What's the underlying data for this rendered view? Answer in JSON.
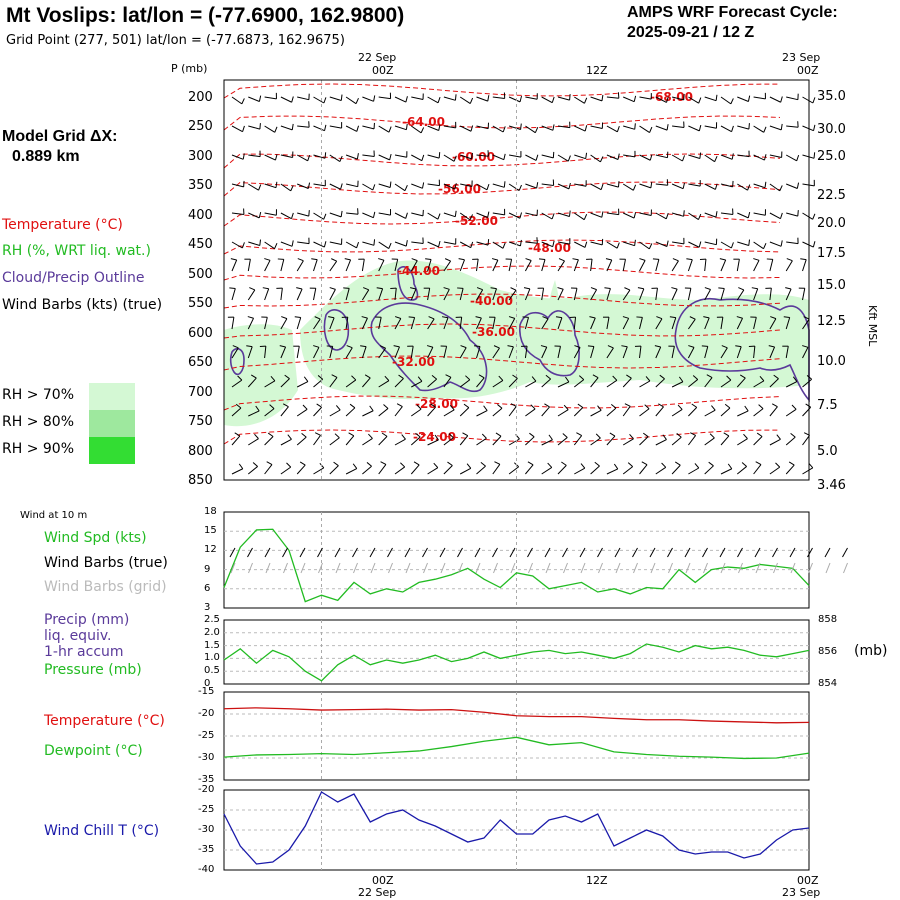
{
  "header": {
    "title": "Mt Voslips:  lat/lon = (-77.6900, 162.9800)",
    "subtitle": "Grid Point (277, 501) lat/lon = (-77.6873, 162.9675)",
    "cycle_line1": "AMPS WRF Forecast Cycle:",
    "cycle_line2": "2025-09-21 / 12  Z",
    "grid_label": "Model Grid ΔX:",
    "grid_value": "0.889 km"
  },
  "legend": {
    "temperature": "Temperature (°C)",
    "rh": "RH (%, WRT liq. wat.)",
    "cloud": "Cloud/Precip Outline",
    "wind": "Wind Barbs (kts) (true)",
    "rh70": "RH > 70%",
    "rh80": "RH > 80%",
    "rh90": "RH > 90%",
    "colors": {
      "rh70": "#d4f8d4",
      "rh80": "#9ee89e",
      "rh90": "#33dd33",
      "temp": "#e01010",
      "cloud": "#5a3a9a",
      "green": "#22bb22",
      "blue": "#1a1aaa"
    }
  },
  "time_axis": {
    "top_dates": [
      "22 Sep",
      "23 Sep"
    ],
    "top_labels": [
      "00Z",
      "12Z",
      "00Z"
    ],
    "bottom_labels": [
      "00Z",
      "12Z",
      "00Z"
    ],
    "bottom_dates": [
      "22 Sep",
      "23 Sep"
    ]
  },
  "chart_data": [
    {
      "type": "line",
      "title": "",
      "ylabel": "P (mb)",
      "y2label": "Kft MSL",
      "pressure_ticks": [
        "200",
        "250",
        "300",
        "350",
        "400",
        "450",
        "500",
        "550",
        "600",
        "650",
        "700",
        "750",
        "800",
        "850"
      ],
      "height_ticks": [
        "35.0",
        "30.0",
        "25.0",
        "22.5",
        "20.0",
        "17.5",
        "15.0",
        "12.5",
        "10.0",
        "7.5",
        "5.0",
        "3.46"
      ],
      "temperature_contour_labels": [
        "-68.00",
        "-64.00",
        "-60.00",
        "-56.00",
        "-52.00",
        "-48.00",
        "-44.00",
        "-40.00",
        "-36.00",
        "-32.00",
        "-28.00",
        "-24.00"
      ],
      "ylim": [
        200,
        850
      ]
    },
    {
      "type": "line",
      "panel_label": "Wind at 10 m",
      "legend": [
        "Wind Spd (kts)",
        "Wind Barbs (true)",
        "Wind Barbs (grid)"
      ],
      "y_ticks": [
        "18",
        "15",
        "12",
        "9",
        "6",
        "3"
      ],
      "ylim": [
        3,
        18
      ],
      "x_hours": [
        0,
        2,
        4,
        6,
        8,
        10,
        12,
        14,
        16,
        18,
        20,
        22,
        24,
        26,
        28,
        30,
        32,
        34,
        36,
        38,
        40,
        42,
        44,
        46,
        48,
        50,
        52,
        54,
        56,
        58,
        60,
        62,
        64,
        66,
        68,
        70,
        72
      ],
      "series": [
        {
          "name": "Wind Spd (kts)",
          "values": [
            6.2,
            12.5,
            15.2,
            15.3,
            12.0,
            4.0,
            5.0,
            4.2,
            7.0,
            5.2,
            6.0,
            5.5,
            7.0,
            7.5,
            8.2,
            9.2,
            7.5,
            6.2,
            8.5,
            8.0,
            6.0,
            6.5,
            7.0,
            5.5,
            6.0,
            5.2,
            6.2,
            6.0,
            9.0,
            7.0,
            9.0,
            9.4,
            9.2,
            9.8,
            9.5,
            9.2,
            6.5
          ]
        }
      ]
    },
    {
      "type": "line",
      "legend": [
        "Precip (mm)",
        "liq. equiv.",
        "1-hr accum",
        "Pressure (mb)"
      ],
      "y_ticks": [
        "2.5",
        "2.0",
        "1.5",
        "1.0",
        "0.5",
        "0"
      ],
      "y2_ticks": [
        "858",
        "856",
        "854"
      ],
      "y2label": "(mb)",
      "ylim": [
        0,
        2.5
      ],
      "y2lim": [
        854,
        858
      ],
      "x_hours": [
        0,
        2,
        4,
        6,
        8,
        10,
        12,
        14,
        16,
        18,
        20,
        22,
        24,
        26,
        28,
        30,
        32,
        34,
        36,
        38,
        40,
        42,
        44,
        46,
        48,
        50,
        52,
        54,
        56,
        58,
        60,
        62,
        64,
        66,
        68,
        70,
        72
      ],
      "series": [
        {
          "name": "Pressure (mb)",
          "values": [
            855.5,
            856.2,
            855.3,
            856.1,
            855.7,
            854.8,
            854.2,
            855.2,
            855.8,
            855.2,
            855.5,
            855.3,
            855.5,
            855.8,
            855.4,
            855.6,
            856.0,
            855.6,
            855.8,
            856.0,
            856.1,
            855.9,
            856.0,
            855.8,
            855.6,
            855.9,
            856.5,
            856.3,
            856.0,
            856.4,
            856.2,
            856.3,
            856.1,
            855.8,
            855.7,
            855.9,
            856.1
          ]
        },
        {
          "name": "Precip (mm)",
          "values": [
            0,
            0,
            0,
            0,
            0,
            0,
            0,
            0,
            0,
            0,
            0,
            0,
            0,
            0,
            0,
            0,
            0,
            0,
            0,
            0,
            0,
            0,
            0,
            0,
            0,
            0,
            0,
            0,
            0,
            0,
            0,
            0,
            0,
            0,
            0,
            0,
            0
          ]
        }
      ]
    },
    {
      "type": "line",
      "legend": [
        "Temperature (°C)",
        "Dewpoint (°C)"
      ],
      "y_ticks": [
        "-15",
        "-20",
        "-25",
        "-30",
        "-35"
      ],
      "ylim": [
        -35,
        -15
      ],
      "x_hours": [
        0,
        4,
        8,
        12,
        16,
        20,
        24,
        28,
        32,
        36,
        40,
        44,
        48,
        52,
        56,
        60,
        64,
        68,
        72
      ],
      "series": [
        {
          "name": "Temperature (°C)",
          "values": [
            -18.8,
            -18.6,
            -18.8,
            -19.1,
            -19.0,
            -18.9,
            -19.1,
            -19.0,
            -19.6,
            -20.4,
            -20.6,
            -20.6,
            -21.0,
            -21.3,
            -21.3,
            -21.6,
            -21.8,
            -22.0,
            -21.9
          ]
        },
        {
          "name": "Dewpoint (°C)",
          "values": [
            -29.8,
            -29.3,
            -29.2,
            -29.0,
            -29.2,
            -28.8,
            -28.4,
            -27.4,
            -26.2,
            -25.3,
            -27.0,
            -26.5,
            -28.6,
            -29.2,
            -29.6,
            -29.8,
            -30.1,
            -30.0,
            -28.9
          ]
        }
      ]
    },
    {
      "type": "line",
      "legend": [
        "Wind Chill T (°C)"
      ],
      "y_ticks": [
        "-20",
        "-25",
        "-30",
        "-35",
        "-40"
      ],
      "ylim": [
        -40,
        -20
      ],
      "x_hours": [
        0,
        2,
        4,
        6,
        8,
        10,
        12,
        14,
        16,
        18,
        20,
        22,
        24,
        26,
        28,
        30,
        32,
        34,
        36,
        38,
        40,
        42,
        44,
        46,
        48,
        50,
        52,
        54,
        56,
        58,
        60,
        62,
        64,
        66,
        68,
        70,
        72
      ],
      "series": [
        {
          "name": "Wind Chill T (°C)",
          "values": [
            -26,
            -34,
            -38.5,
            -38,
            -35,
            -29,
            -20.5,
            -23,
            -21,
            -28,
            -26,
            -25,
            -27.5,
            -29,
            -31,
            -33,
            -32,
            -27.5,
            -31,
            -31,
            -27.5,
            -26.5,
            -28,
            -26,
            -34,
            -32,
            -30,
            -31.5,
            -35,
            -36,
            -35.5,
            -35.5,
            -37,
            -36,
            -32.5,
            -30,
            -29.5
          ]
        }
      ]
    }
  ]
}
